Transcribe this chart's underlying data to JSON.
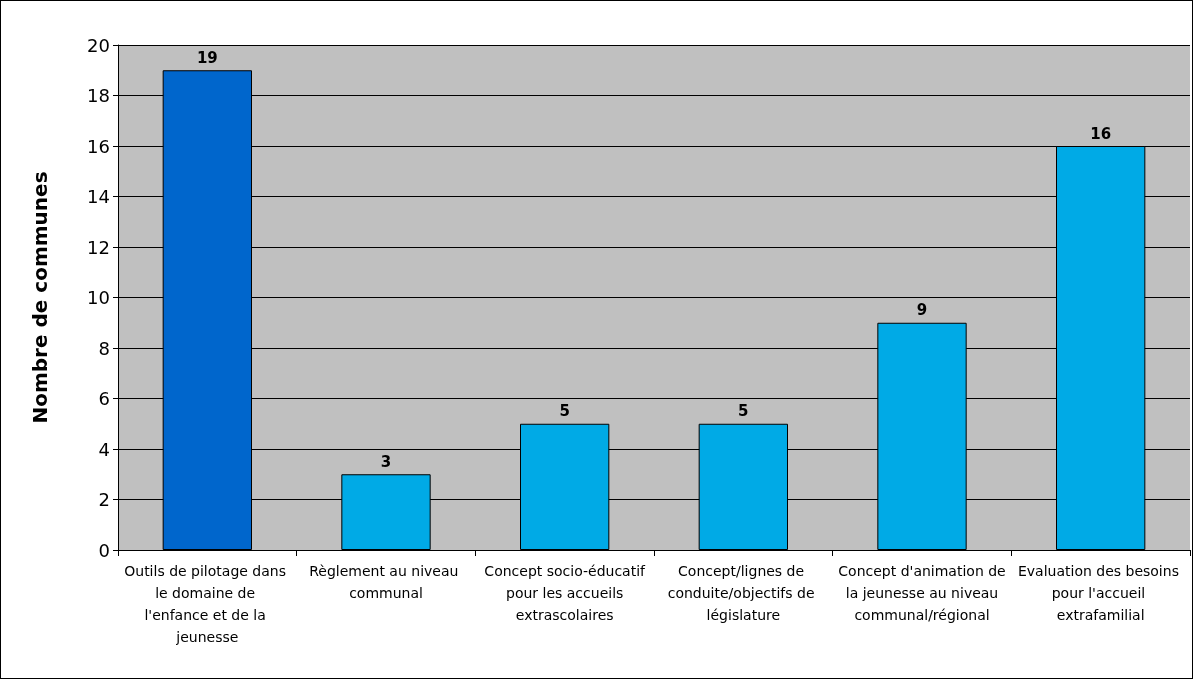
{
  "chart_data": {
    "type": "bar",
    "ylabel": "Nombre de communes",
    "categories": [
      "Outils de pilotage dans le domaine de l'enfance et de la jeunesse",
      "Règlement au niveau communal",
      "Concept socio-éducatif pour les accueils extrascolaires",
      "Concept/lignes de conduite/objectifs de législature",
      "Concept d'animation de la jeunesse au niveau communal/régional",
      "Evaluation des besoins pour l'accueil extrafamilial"
    ],
    "values": [
      19,
      3,
      5,
      5,
      9,
      16
    ],
    "colors": [
      "#0066cc",
      "#00aae6",
      "#00aae6",
      "#00aae6",
      "#00aae6",
      "#00aae6"
    ],
    "ylim": [
      0,
      20
    ],
    "yticks": [
      0,
      2,
      4,
      6,
      8,
      10,
      12,
      14,
      16,
      18,
      20
    ],
    "grid": "y",
    "data_labels": true
  }
}
